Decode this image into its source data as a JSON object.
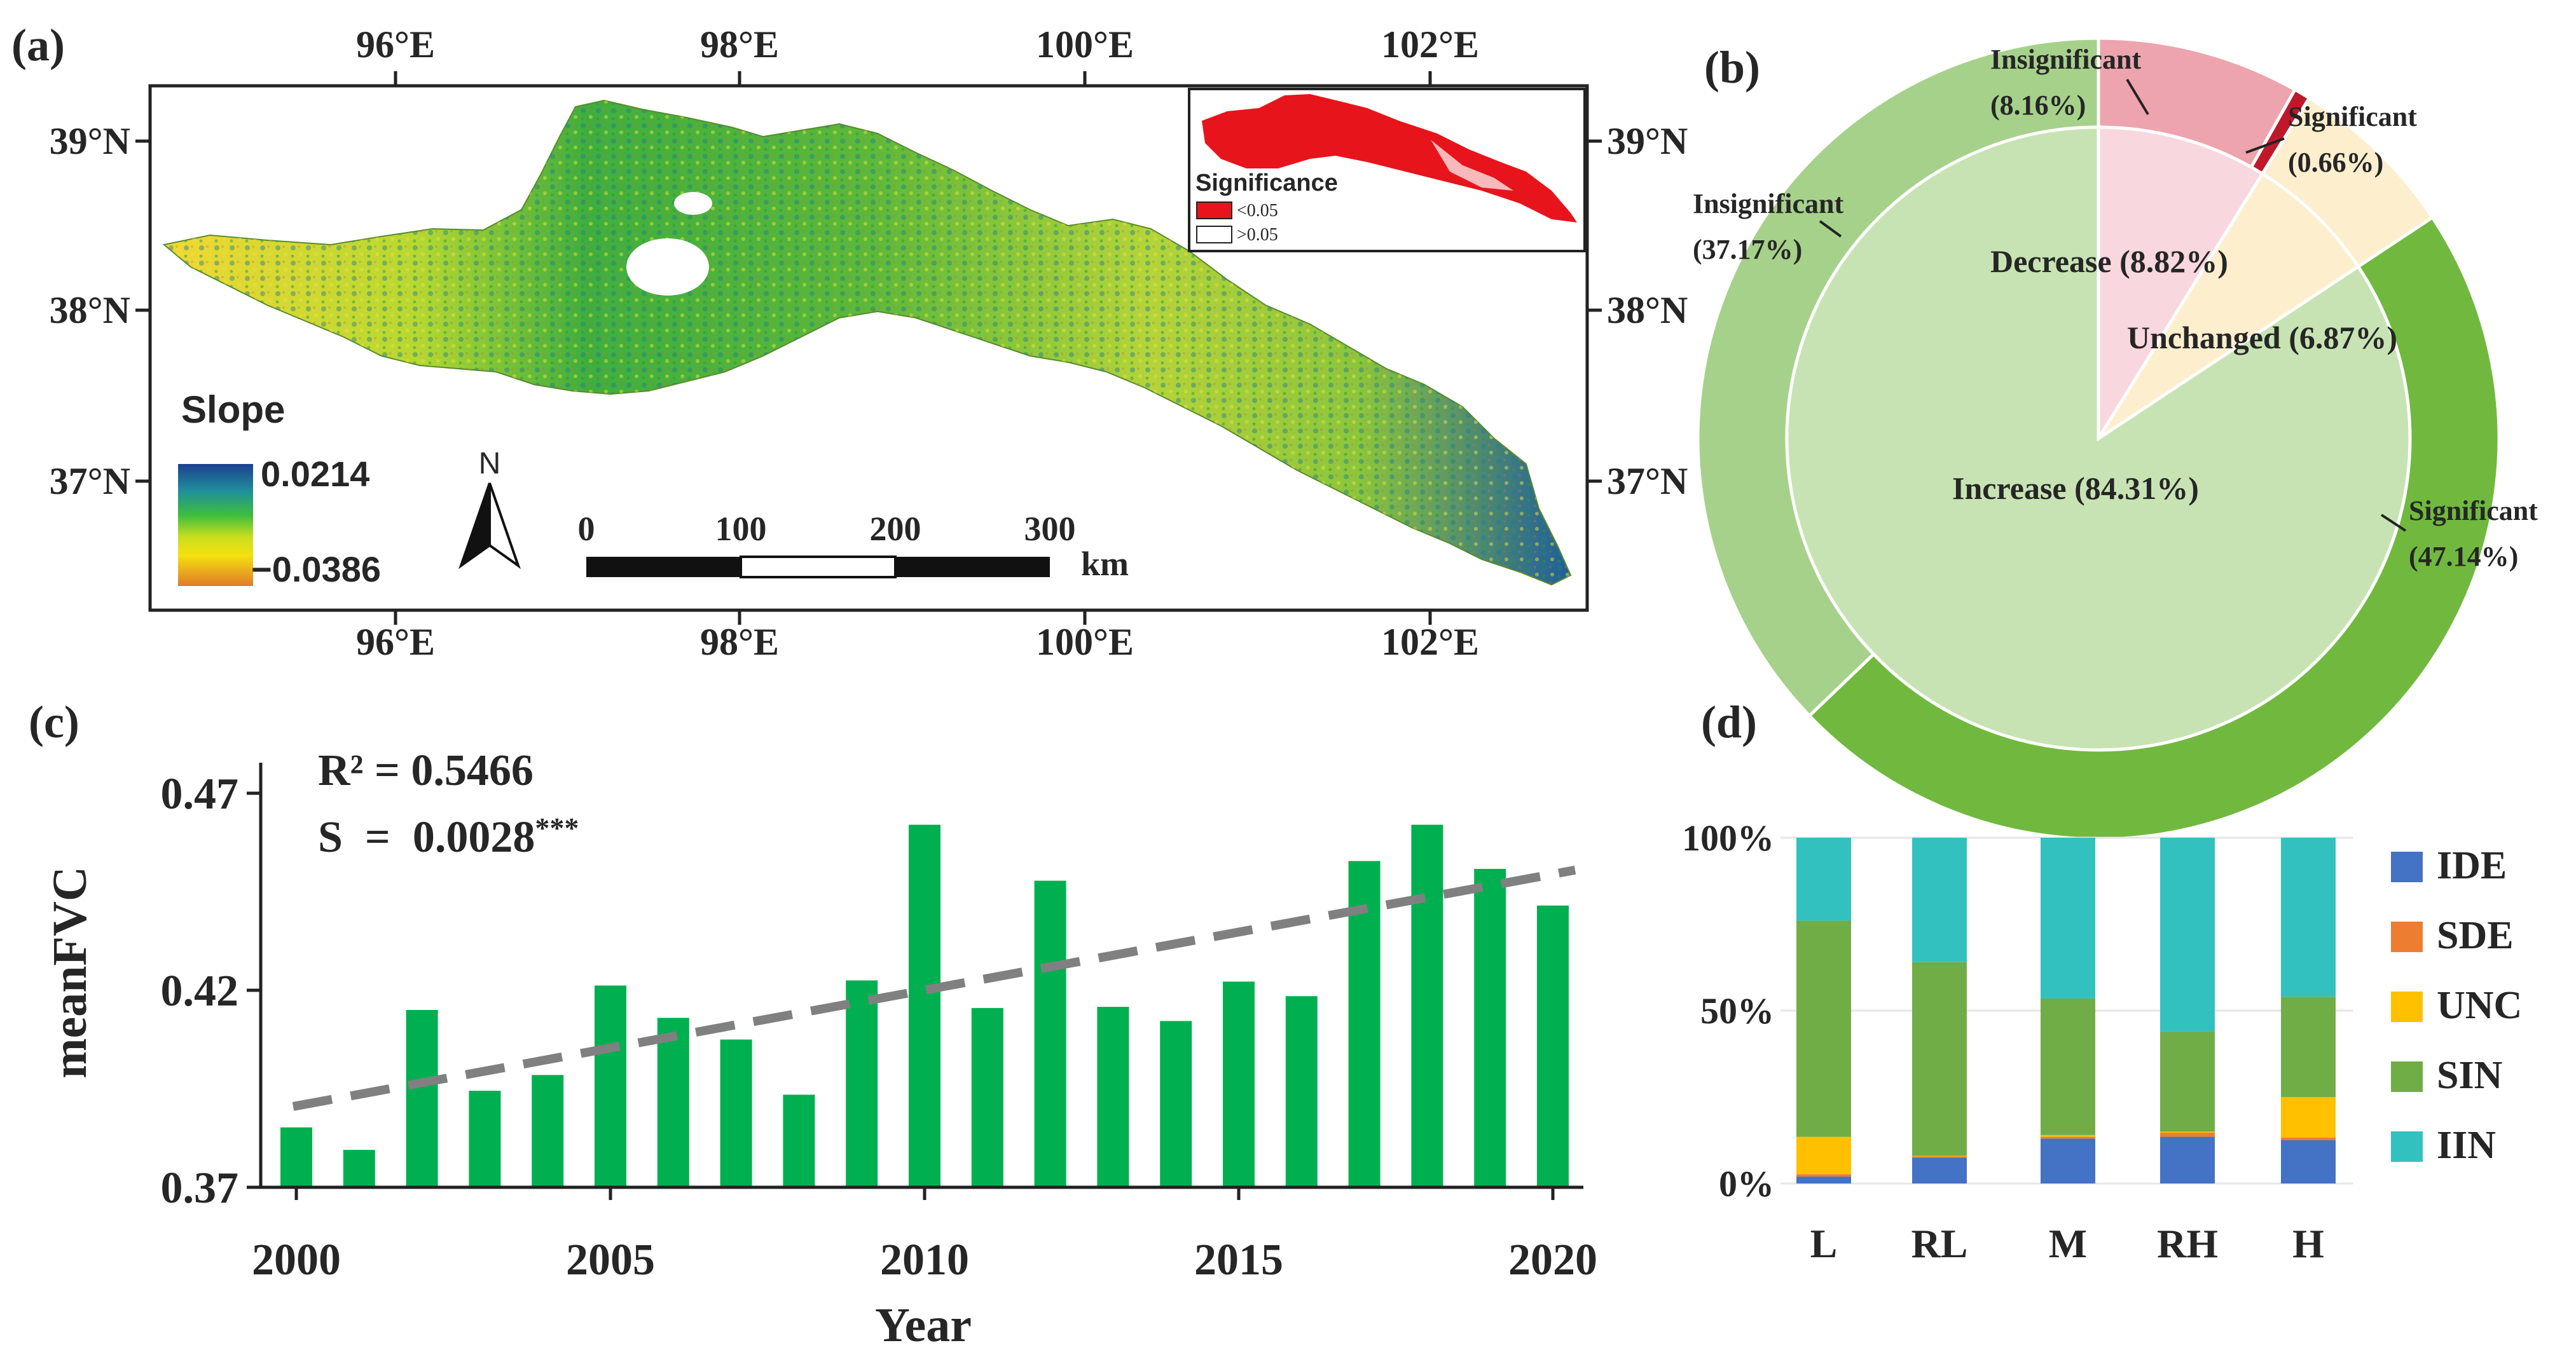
{
  "colors": {
    "green_bar": "#00b050",
    "trend_line": "#808080",
    "pie_inc_inner": "#c7e3b3",
    "pie_sig_inc": "#70b93e",
    "pie_insig_inc": "#a6d18a",
    "pie_dec_inner": "#f9d7df",
    "pie_insig_dec": "#eda4ae",
    "pie_sig_dec": "#c0182b",
    "pie_unc": "#fdeecd",
    "stack_IDE": "#4472c4",
    "stack_SDE": "#ed7d31",
    "stack_UNC": "#ffc000",
    "stack_SIN": "#70ad47",
    "stack_IIN": "#33c1c0"
  },
  "panel_a": {
    "label": "(a)",
    "lon_ticks": [
      "96°E",
      "98°E",
      "100°E",
      "102°E"
    ],
    "lat_ticks": [
      "39°N",
      "38°N",
      "37°N"
    ],
    "legend_title": "Slope",
    "legend_max": "0.0214",
    "legend_min": "−0.0386",
    "north_label": "N",
    "scale_labels": [
      "0",
      "100",
      "200",
      "300"
    ],
    "scale_unit": "km",
    "inset_title": "Significance",
    "inset_items": [
      "<0.05",
      ">0.05"
    ]
  },
  "chart_data": [
    {
      "type": "pie",
      "panel": "(b)",
      "inner_ring": [
        {
          "name": "Decrease",
          "value": 8.82,
          "label": "Decrease (8.82%)"
        },
        {
          "name": "Unchanged",
          "value": 6.87,
          "label": "Unchanged (6.87%)"
        },
        {
          "name": "Increase",
          "value": 84.31,
          "label": "Increase (84.31%)"
        }
      ],
      "outer_ring": [
        {
          "group": "Decrease",
          "name": "Insignificant",
          "value": 8.16,
          "label": "(8.16%)"
        },
        {
          "group": "Decrease",
          "name": "Significant",
          "value": 0.66,
          "label": "(0.66%)"
        },
        {
          "group": "Unchanged",
          "name": "Unchanged",
          "value": 6.87,
          "label": ""
        },
        {
          "group": "Increase",
          "name": "Significant",
          "value": 47.14,
          "label": "(47.14%)"
        },
        {
          "group": "Increase",
          "name": "Insignificant",
          "value": 37.17,
          "label": "(37.17%)"
        }
      ]
    },
    {
      "type": "bar",
      "panel": "(c)",
      "x": [
        2000,
        2001,
        2002,
        2003,
        2004,
        2005,
        2006,
        2007,
        2008,
        2009,
        2010,
        2011,
        2012,
        2013,
        2014,
        2015,
        2016,
        2017,
        2018,
        2019,
        2020
      ],
      "values": [
        0.3852,
        0.3795,
        0.415,
        0.3945,
        0.3985,
        0.4212,
        0.413,
        0.4075,
        0.3935,
        0.4225,
        0.462,
        0.4155,
        0.4478,
        0.4158,
        0.4122,
        0.4222,
        0.4185,
        0.4528,
        0.462,
        0.4508,
        0.4415
      ],
      "trend": {
        "start": 0.3905,
        "end": 0.4505
      },
      "xticks": [
        "2000",
        "2005",
        "2010",
        "2015",
        "2020"
      ],
      "yticks": [
        "0.37",
        "0.42",
        "0.47"
      ],
      "ylim": [
        0.37,
        0.47
      ],
      "xlabel": "Year",
      "ylabel": "meanFVC",
      "annotation_r2": "R² = 0.5466",
      "annotation_s": "S  =  0.0028",
      "annotation_sig": "***"
    },
    {
      "type": "bar",
      "stacked": true,
      "panel": "(d)",
      "categories": [
        "L",
        "RL",
        "M",
        "RH",
        "H"
      ],
      "series": [
        {
          "name": "IDE",
          "values": [
            2,
            7.5,
            13,
            13.5,
            12.5
          ]
        },
        {
          "name": "SDE",
          "values": [
            0.7,
            0.3,
            0.5,
            1.2,
            0.8
          ]
        },
        {
          "name": "UNC",
          "values": [
            10.8,
            0.2,
            0.5,
            0.3,
            11.7
          ]
        },
        {
          "name": "SIN",
          "values": [
            62.5,
            56,
            39.5,
            29,
            29
          ]
        },
        {
          "name": "IIN",
          "values": [
            24,
            36,
            46.5,
            56,
            46
          ]
        }
      ],
      "yticks": [
        "0%",
        "50%",
        "100%"
      ],
      "ylim": [
        0,
        100
      ]
    }
  ]
}
